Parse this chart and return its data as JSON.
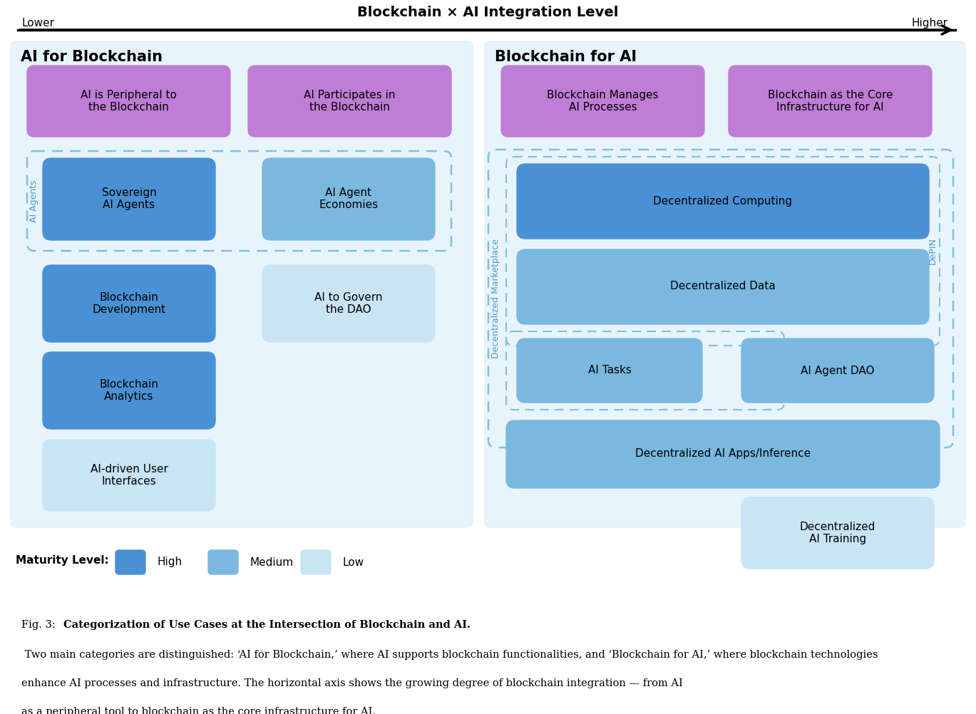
{
  "title": "Blockchain × AI Integration Level",
  "arrow_label_left": "Lower",
  "arrow_label_right": "Higher",
  "left_panel_title": "AI for Blockchain",
  "right_panel_title": "Blockchain for AI",
  "bg_color": "#e8f4fc",
  "purple_box_color": "#bf7dd6",
  "blue_high_color": "#4a90d4",
  "blue_high_gradient_end": "#5ab0e8",
  "blue_med_color": "#7ab8e0",
  "blue_low_color": "#c8e4f5",
  "dashed_box_color": "#80c0e0",
  "legend_high": "#4a90d4",
  "legend_med": "#7ab8e0",
  "legend_low": "#c8e4f5",
  "caption_bold": "Categorization of Use Cases at the Intersection of Blockchain and AI.",
  "caption_rest": " Two main categories are distinguished: ‘AI for Blockchain,’ where AI supports blockchain functionalities, and ‘Blockchain for AI,’ where blockchain technologies enhance AI processes and infrastructure. The horizontal axis shows the growing degree of blockchain integration — from AI as a peripheral tool to blockchain as the core infrastructure for AI."
}
